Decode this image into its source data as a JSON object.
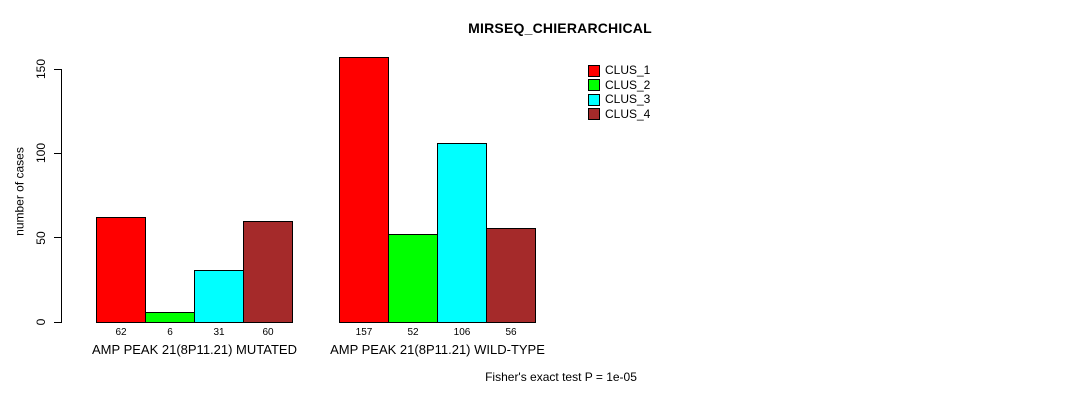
{
  "title": "MIRSEQ_CHIERARCHICAL",
  "footer": "Fisher's exact test P = 1e-05",
  "chart_data": {
    "type": "bar",
    "title": "MIRSEQ_CHIERARCHICAL",
    "xlabel": "",
    "ylabel": "number of cases",
    "ylim": [
      0,
      150
    ],
    "yticks": [
      "0",
      "50",
      "100",
      "150"
    ],
    "ytick_values": [
      0,
      50,
      100,
      150
    ],
    "grid": false,
    "background": "#ffffff",
    "bar_border_color": "#000000",
    "legend_position": "top-right",
    "categories": [
      "AMP PEAK 21(8P11.21) MUTATED",
      "AMP PEAK 21(8P11.21) WILD-TYPE"
    ],
    "series": [
      {
        "name": "CLUS_1",
        "color": "#FF0000",
        "values": [
          62,
          157
        ]
      },
      {
        "name": "CLUS_2",
        "color": "#00FF00",
        "values": [
          6,
          52
        ]
      },
      {
        "name": "CLUS_3",
        "color": "#00FFFF",
        "values": [
          31,
          106
        ]
      },
      {
        "name": "CLUS_4",
        "color": "#A52A2A",
        "values": [
          60,
          56
        ]
      }
    ],
    "groups": [
      {
        "label": "AMP PEAK 21(8P11.21) MUTATED",
        "values": [
          62,
          6,
          31,
          60
        ]
      },
      {
        "label": "AMP PEAK 21(8P11.21) WILD-TYPE",
        "values": [
          157,
          52,
          106,
          56
        ]
      }
    ],
    "bar_value_labels_shown": true,
    "annotation": "Fisher's exact test P = 1e-05"
  }
}
